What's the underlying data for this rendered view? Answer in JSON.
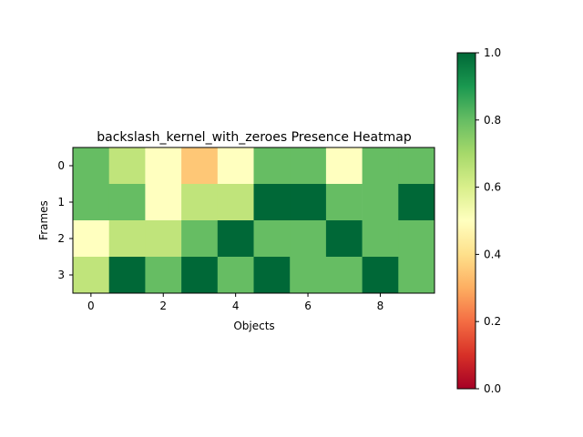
{
  "chart_data": {
    "type": "heatmap",
    "title": "backslash_kernel_with_zeroes Presence Heatmap",
    "xlabel": "Objects",
    "ylabel": "Frames",
    "x_ticks": [
      0,
      2,
      4,
      6,
      8
    ],
    "y_ticks": [
      0,
      1,
      2,
      3
    ],
    "columns": 10,
    "rows": 4,
    "values": [
      [
        0.8,
        0.65,
        0.5,
        0.35,
        0.5,
        0.8,
        0.8,
        0.5,
        0.8,
        0.8
      ],
      [
        0.8,
        0.8,
        0.5,
        0.65,
        0.65,
        1.0,
        1.0,
        0.8,
        0.8,
        1.0
      ],
      [
        0.5,
        0.65,
        0.65,
        0.8,
        1.0,
        0.8,
        0.8,
        1.0,
        0.8,
        0.8
      ],
      [
        0.65,
        1.0,
        0.8,
        1.0,
        0.8,
        1.0,
        0.8,
        0.8,
        1.0,
        0.8
      ]
    ],
    "colormap": "RdYlGn",
    "colorbar": {
      "min": 0.0,
      "max": 1.0,
      "ticks": [
        "0.0",
        "0.2",
        "0.4",
        "0.6",
        "0.8",
        "1.0"
      ]
    }
  }
}
